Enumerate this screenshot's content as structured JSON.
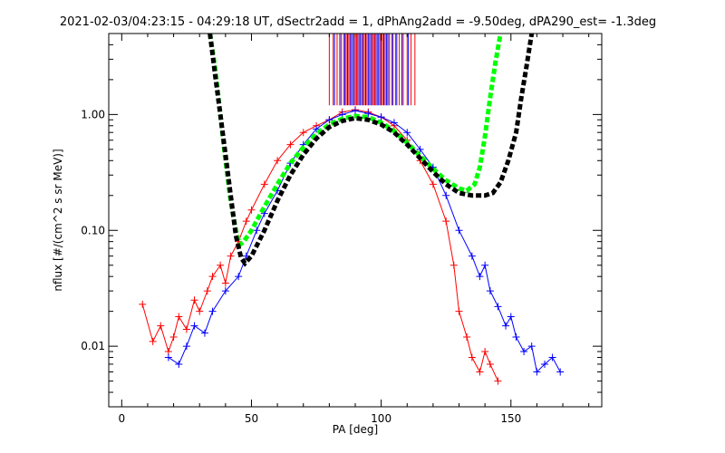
{
  "chart_data": {
    "type": "scatter",
    "title": "2021-02-03/04:23:15 - 04:29:18 UT, dSectr2add = 1, dPhAng2add = -9.50deg, dPA290_est=  -1.3deg",
    "xlabel": "PA [deg]",
    "ylabel": "nflux [#/(cm^2 s sr MeV)]",
    "xlim": [
      -5,
      185
    ],
    "ylim": [
      0.003,
      5.0
    ],
    "yscale": "log",
    "x_ticks": [
      0,
      50,
      100,
      150
    ],
    "x_tick_labels": [
      "0",
      "50",
      "100",
      "150"
    ],
    "y_ticks": [
      0.01,
      0.1,
      1.0
    ],
    "y_tick_labels": [
      "0.01",
      "0.10",
      "1.00"
    ],
    "grid": false,
    "legend": "none",
    "colors": {
      "red_series": "#ff0000",
      "blue_series": "#0000ff",
      "green_curve": "#00ff00",
      "black_curve": "#000000",
      "axis": "#000000"
    },
    "series": [
      {
        "color": "red",
        "style": "line+plus",
        "points": [
          [
            8,
            0.023
          ],
          [
            12,
            0.011
          ],
          [
            15,
            0.015
          ],
          [
            18,
            0.009
          ],
          [
            20,
            0.012
          ],
          [
            22,
            0.018
          ],
          [
            25,
            0.014
          ],
          [
            28,
            0.025
          ],
          [
            30,
            0.02
          ],
          [
            33,
            0.03
          ],
          [
            35,
            0.04
          ],
          [
            38,
            0.05
          ],
          [
            40,
            0.035
          ],
          [
            42,
            0.06
          ],
          [
            45,
            0.08
          ],
          [
            48,
            0.12
          ],
          [
            50,
            0.15
          ],
          [
            55,
            0.25
          ],
          [
            60,
            0.4
          ],
          [
            65,
            0.55
          ],
          [
            70,
            0.7
          ],
          [
            75,
            0.8
          ],
          [
            80,
            0.9
          ],
          [
            85,
            1.05
          ],
          [
            90,
            1.1
          ],
          [
            95,
            1.05
          ],
          [
            100,
            0.95
          ],
          [
            105,
            0.8
          ],
          [
            110,
            0.6
          ],
          [
            115,
            0.4
          ],
          [
            120,
            0.25
          ],
          [
            125,
            0.12
          ],
          [
            128,
            0.05
          ],
          [
            130,
            0.02
          ],
          [
            133,
            0.012
          ],
          [
            135,
            0.008
          ],
          [
            138,
            0.006
          ],
          [
            140,
            0.009
          ],
          [
            142,
            0.007
          ],
          [
            145,
            0.005
          ]
        ]
      },
      {
        "color": "blue",
        "style": "line+plus",
        "points": [
          [
            18,
            0.008
          ],
          [
            22,
            0.007
          ],
          [
            25,
            0.01
          ],
          [
            28,
            0.015
          ],
          [
            32,
            0.013
          ],
          [
            35,
            0.02
          ],
          [
            40,
            0.03
          ],
          [
            45,
            0.04
          ],
          [
            48,
            0.06
          ],
          [
            52,
            0.1
          ],
          [
            55,
            0.14
          ],
          [
            60,
            0.22
          ],
          [
            65,
            0.38
          ],
          [
            70,
            0.55
          ],
          [
            75,
            0.75
          ],
          [
            80,
            0.9
          ],
          [
            85,
            1.0
          ],
          [
            90,
            1.08
          ],
          [
            95,
            1.02
          ],
          [
            100,
            0.95
          ],
          [
            105,
            0.85
          ],
          [
            110,
            0.7
          ],
          [
            115,
            0.5
          ],
          [
            120,
            0.35
          ],
          [
            125,
            0.2
          ],
          [
            130,
            0.1
          ],
          [
            135,
            0.06
          ],
          [
            138,
            0.04
          ],
          [
            140,
            0.05
          ],
          [
            142,
            0.03
          ],
          [
            145,
            0.022
          ],
          [
            148,
            0.015
          ],
          [
            150,
            0.018
          ],
          [
            152,
            0.012
          ],
          [
            155,
            0.009
          ],
          [
            158,
            0.01
          ],
          [
            160,
            0.006
          ],
          [
            163,
            0.007
          ],
          [
            166,
            0.008
          ],
          [
            169,
            0.006
          ]
        ]
      }
    ],
    "curves": [
      {
        "color": "green",
        "style": "thick-dashed",
        "points": [
          [
            34,
            5.0
          ],
          [
            36,
            2.5
          ],
          [
            38,
            1.0
          ],
          [
            40,
            0.4
          ],
          [
            42,
            0.18
          ],
          [
            44,
            0.1
          ],
          [
            45.5,
            0.075
          ],
          [
            47,
            0.08
          ],
          [
            50,
            0.1
          ],
          [
            55,
            0.16
          ],
          [
            60,
            0.25
          ],
          [
            65,
            0.38
          ],
          [
            70,
            0.52
          ],
          [
            75,
            0.68
          ],
          [
            80,
            0.82
          ],
          [
            85,
            0.92
          ],
          [
            90,
            0.97
          ],
          [
            95,
            0.95
          ],
          [
            100,
            0.85
          ],
          [
            105,
            0.72
          ],
          [
            110,
            0.57
          ],
          [
            115,
            0.44
          ],
          [
            120,
            0.34
          ],
          [
            125,
            0.27
          ],
          [
            130,
            0.23
          ],
          [
            133,
            0.22
          ],
          [
            136,
            0.25
          ],
          [
            138,
            0.35
          ],
          [
            140,
            0.65
          ],
          [
            142,
            1.4
          ],
          [
            144,
            2.8
          ],
          [
            146,
            5.0
          ]
        ]
      },
      {
        "color": "black",
        "style": "thick-dashed",
        "points": [
          [
            34,
            5.0
          ],
          [
            36,
            2.2
          ],
          [
            38,
            1.0
          ],
          [
            40,
            0.45
          ],
          [
            42,
            0.2
          ],
          [
            44,
            0.09
          ],
          [
            46,
            0.058
          ],
          [
            47.5,
            0.052
          ],
          [
            50,
            0.06
          ],
          [
            55,
            0.1
          ],
          [
            60,
            0.18
          ],
          [
            65,
            0.3
          ],
          [
            70,
            0.45
          ],
          [
            75,
            0.62
          ],
          [
            80,
            0.78
          ],
          [
            85,
            0.88
          ],
          [
            90,
            0.93
          ],
          [
            95,
            0.9
          ],
          [
            100,
            0.82
          ],
          [
            105,
            0.7
          ],
          [
            110,
            0.55
          ],
          [
            115,
            0.42
          ],
          [
            120,
            0.32
          ],
          [
            125,
            0.25
          ],
          [
            130,
            0.21
          ],
          [
            135,
            0.2
          ],
          [
            140,
            0.2
          ],
          [
            143,
            0.21
          ],
          [
            146,
            0.26
          ],
          [
            149,
            0.4
          ],
          [
            152,
            0.7
          ],
          [
            154,
            1.4
          ],
          [
            156,
            2.6
          ],
          [
            158,
            5.0
          ]
        ]
      }
    ],
    "vertical_markers": {
      "y_range": [
        1.2,
        5.0
      ],
      "red_x": [
        80,
        81.5,
        83,
        84,
        85.5,
        86.5,
        87.5,
        88.5,
        89.5,
        90.5,
        91.5,
        92.5,
        93.5,
        94.5,
        95.5,
        96.5,
        97.5,
        98.5,
        99.5,
        100.5,
        101.5,
        102.5,
        104,
        105.5,
        107,
        108.5,
        110,
        111.5,
        113
      ],
      "blue_x": [
        82,
        84.5,
        86,
        87,
        88,
        89,
        90,
        91,
        92,
        93,
        94,
        95,
        96,
        97,
        98,
        99,
        100,
        101,
        102,
        103,
        104.5,
        106,
        108,
        110.5
      ]
    }
  }
}
